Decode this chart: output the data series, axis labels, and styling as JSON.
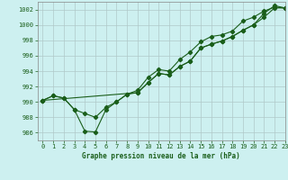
{
  "title": "Graphe pression niveau de la mer (hPa)",
  "bg_color": "#cdf0f0",
  "grid_color": "#b0c8c8",
  "line_color": "#1a5e1a",
  "xlim": [
    -0.5,
    23
  ],
  "ylim": [
    985,
    1003
  ],
  "yticks": [
    986,
    988,
    990,
    992,
    994,
    996,
    998,
    1000,
    1002
  ],
  "xticks": [
    0,
    1,
    2,
    3,
    4,
    5,
    6,
    7,
    8,
    9,
    10,
    11,
    12,
    13,
    14,
    15,
    16,
    17,
    18,
    19,
    20,
    21,
    22,
    23
  ],
  "series1_x": [
    0,
    1,
    2,
    3,
    4,
    5,
    6,
    7,
    8,
    9,
    10,
    11,
    12,
    13,
    14,
    15,
    16,
    17,
    18,
    19,
    20,
    21,
    22,
    23
  ],
  "series1_y": [
    990.2,
    990.8,
    990.5,
    989.0,
    986.2,
    986.1,
    989.0,
    990.0,
    991.0,
    991.2,
    992.5,
    993.7,
    993.5,
    994.6,
    995.3,
    997.0,
    997.5,
    997.9,
    998.5,
    999.3,
    1000.0,
    1001.0,
    1002.2,
    1002.2
  ],
  "series2_x": [
    0,
    1,
    2,
    3,
    4,
    5,
    6,
    7,
    8,
    9,
    10,
    11,
    12,
    13,
    14,
    15,
    16,
    17,
    18,
    19,
    20,
    21,
    22,
    23
  ],
  "series2_y": [
    990.2,
    990.8,
    990.5,
    989.0,
    988.5,
    988.0,
    989.3,
    990.0,
    991.0,
    991.5,
    993.2,
    994.2,
    994.0,
    995.5,
    996.5,
    997.8,
    998.5,
    998.7,
    999.2,
    1000.5,
    1001.0,
    1001.8,
    1002.3,
    1002.2
  ],
  "series3_x": [
    0,
    9,
    10,
    11,
    12,
    13,
    14,
    15,
    16,
    17,
    18,
    19,
    20,
    21,
    22,
    23
  ],
  "series3_y": [
    990.2,
    991.2,
    992.5,
    993.7,
    993.5,
    994.6,
    995.3,
    997.0,
    997.5,
    997.9,
    998.5,
    999.3,
    1000.0,
    1001.5,
    1002.5,
    1002.2
  ]
}
